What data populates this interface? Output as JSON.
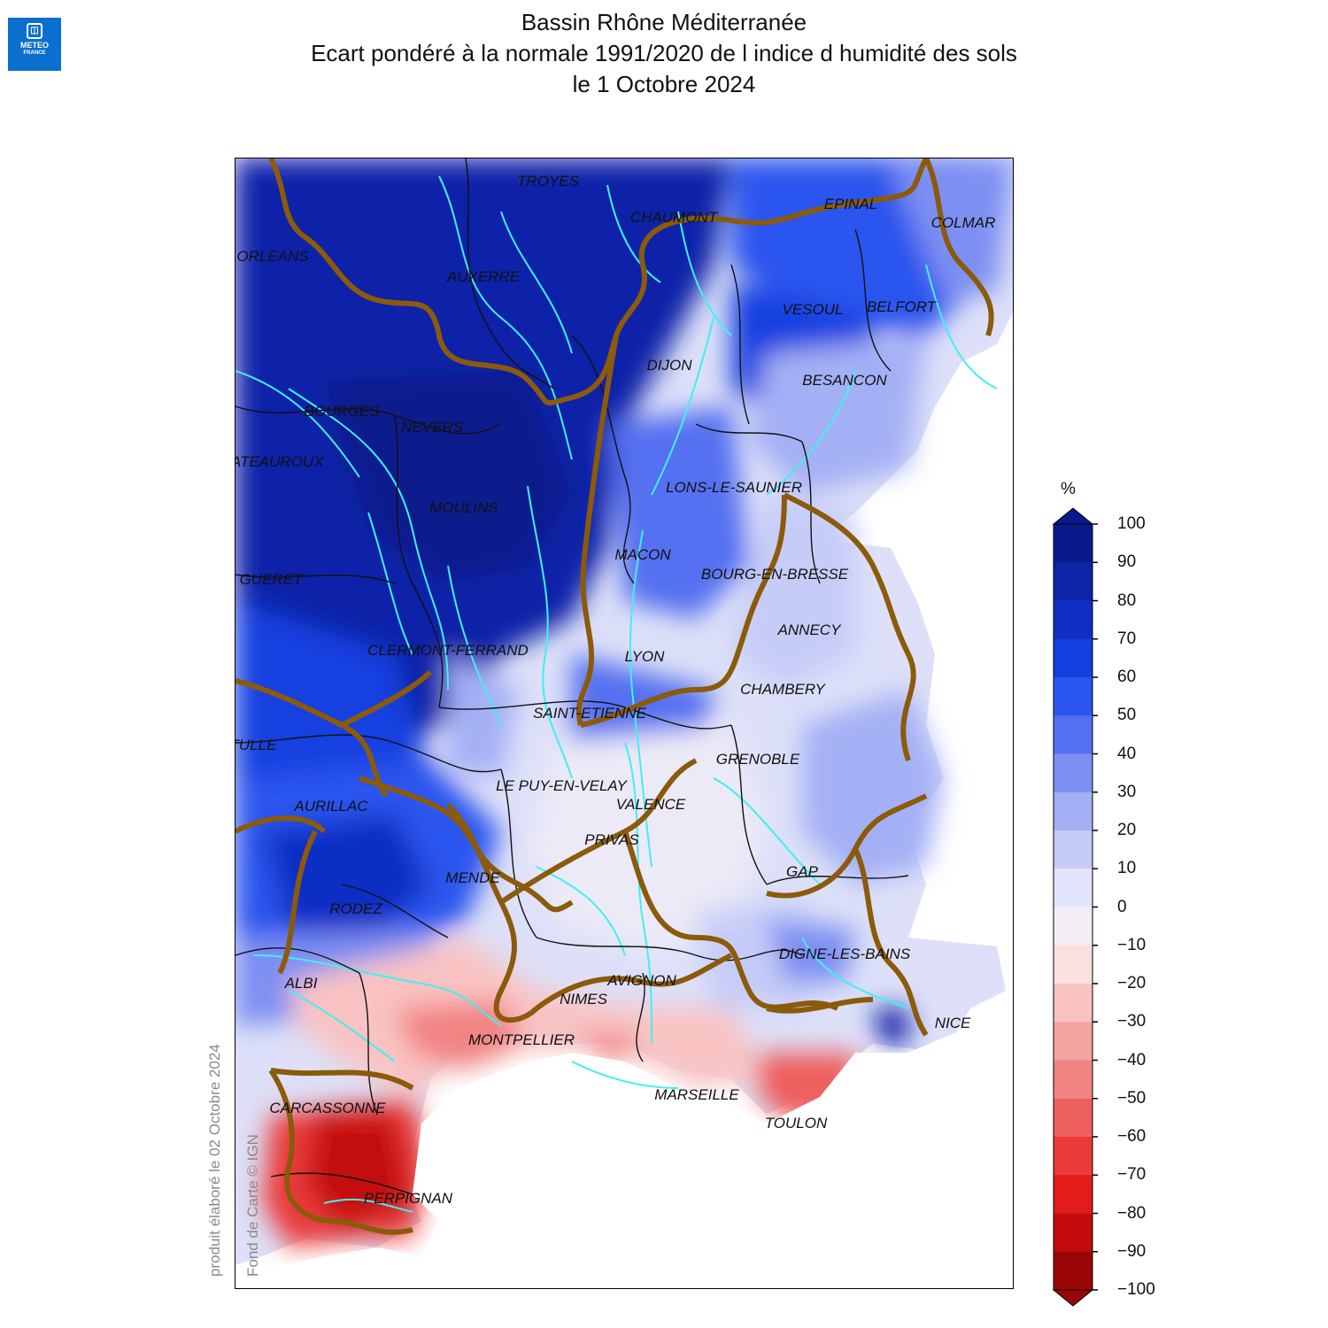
{
  "header": {
    "logo_line1": "METEO",
    "logo_line2": "FRANCE",
    "title_line1": "Bassin Rhône Méditerranée",
    "title_line2": "Ecart pondéré à la normale 1991/2020 de l indice d humidité des sols",
    "title_line3": "le 1 Octobre 2024"
  },
  "credits": {
    "produced": "produit élaboré le 02 Octobre 2024",
    "basemap": "Fond de Carte © IGN"
  },
  "map": {
    "cities": [
      {
        "name": "TROYES"
      },
      {
        "name": "CHAUMONT"
      },
      {
        "name": "EPINAL"
      },
      {
        "name": "COLMAR"
      },
      {
        "name": "ORLEANS"
      },
      {
        "name": "AUXERRE"
      },
      {
        "name": "VESOUL"
      },
      {
        "name": "BELFORT"
      },
      {
        "name": "DIJON"
      },
      {
        "name": "BESANCON"
      },
      {
        "name": "BOURGES"
      },
      {
        "name": "NEVERS"
      },
      {
        "name": "CHATEAUROUX"
      },
      {
        "name": "LONS-LE-SAUNIER"
      },
      {
        "name": "MOULINS"
      },
      {
        "name": "MACON"
      },
      {
        "name": "BOURG-EN-BRESSE"
      },
      {
        "name": "GUERET"
      },
      {
        "name": "ANNECY"
      },
      {
        "name": "CLERMONT-FERRAND"
      },
      {
        "name": "LYON"
      },
      {
        "name": "CHAMBERY"
      },
      {
        "name": "SAINT-ETIENNE"
      },
      {
        "name": "TULLE"
      },
      {
        "name": "GRENOBLE"
      },
      {
        "name": "LE PUY-EN-VELAY"
      },
      {
        "name": "AURILLAC"
      },
      {
        "name": "VALENCE"
      },
      {
        "name": "PRIVAS"
      },
      {
        "name": "MENDE"
      },
      {
        "name": "GAP"
      },
      {
        "name": "RODEZ"
      },
      {
        "name": "DIGNE-LES-BAINS"
      },
      {
        "name": "ALBI"
      },
      {
        "name": "AVIGNON"
      },
      {
        "name": "NIMES"
      },
      {
        "name": "NICE"
      },
      {
        "name": "MONTPELLIER"
      },
      {
        "name": "MARSEILLE"
      },
      {
        "name": "CARCASSONNE"
      },
      {
        "name": "TOULON"
      },
      {
        "name": "PERPIGNAN"
      }
    ]
  },
  "legend": {
    "unit": "%",
    "ticks": [
      "100",
      "90",
      "80",
      "70",
      "60",
      "50",
      "40",
      "30",
      "20",
      "10",
      "0",
      "−10",
      "−20",
      "−30",
      "−40",
      "−50",
      "−60",
      "−70",
      "−80",
      "−90",
      "−100"
    ],
    "colors_top_to_bottom": [
      "#0a1a8c",
      "#0c24a8",
      "#0f2fc4",
      "#1440e0",
      "#2a55ee",
      "#5470f0",
      "#7d8ff2",
      "#a4b0f5",
      "#c6ccf8",
      "#e2e5fb",
      "#f2eef4",
      "#fbe0e0",
      "#f9c3c3",
      "#f5a4a4",
      "#f28383",
      "#ee5f5f",
      "#ea3a3a",
      "#e21b1b",
      "#c40c0c",
      "#9a0606"
    ]
  }
}
